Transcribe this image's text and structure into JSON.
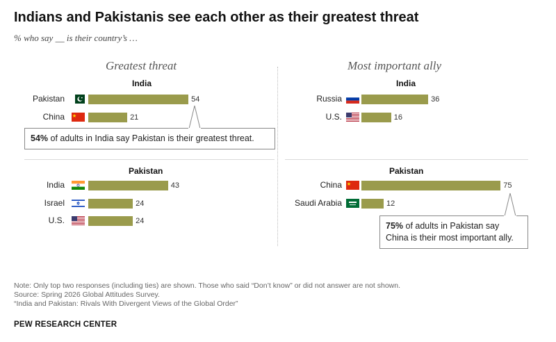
{
  "title": "Indians and Pakistanis see each other as their greatest threat",
  "subtitle": "% who say __ is their country’s …",
  "columns": {
    "left": "Greatest threat",
    "right": "Most important ally"
  },
  "chart_data": [
    {
      "type": "bar",
      "orientation": "horizontal",
      "column": "Greatest threat",
      "panel": "India",
      "categories": [
        "Pakistan",
        "China"
      ],
      "values": [
        54,
        21
      ],
      "xlim": [
        0,
        100
      ]
    },
    {
      "type": "bar",
      "orientation": "horizontal",
      "column": "Greatest threat",
      "panel": "Pakistan",
      "categories": [
        "India",
        "Israel",
        "U.S."
      ],
      "values": [
        43,
        24,
        24
      ],
      "xlim": [
        0,
        100
      ]
    },
    {
      "type": "bar",
      "orientation": "horizontal",
      "column": "Most important ally",
      "panel": "India",
      "categories": [
        "Russia",
        "U.S."
      ],
      "values": [
        36,
        16
      ],
      "xlim": [
        0,
        100
      ]
    },
    {
      "type": "bar",
      "orientation": "horizontal",
      "column": "Most important ally",
      "panel": "Pakistan",
      "categories": [
        "China",
        "Saudi Arabia"
      ],
      "values": [
        75,
        12
      ],
      "xlim": [
        0,
        100
      ]
    }
  ],
  "flags": {
    "greatest_india": [
      "pakistan-flag-icon",
      "china-flag-icon"
    ],
    "greatest_pakistan": [
      "india-flag-icon",
      "israel-flag-icon",
      "us-flag-icon"
    ],
    "ally_india": [
      "russia-flag-icon",
      "us-flag-icon"
    ],
    "ally_pakistan": [
      "china-flag-icon",
      "saudi-arabia-flag-icon"
    ]
  },
  "callouts": {
    "threat": {
      "bold": "54%",
      "text": " of adults in India say Pakistan is their greatest threat."
    },
    "ally": {
      "bold": "75%",
      "text_line1": " of adults in Pakistan say",
      "text_line2": "China is their most important ally."
    }
  },
  "notes": [
    "Note: Only top two responses (including ties) are shown. Those who said “Don’t know” or did not answer are not shown.",
    "Source: Spring 2026 Global Attitudes Survey.",
    "“India and Pakistan: Rivals With Divergent Views of the Global Order”"
  ],
  "brand": "PEW RESEARCH CENTER",
  "colors": {
    "bar": "#9a9b4c",
    "divider": "#d9d9d9"
  }
}
